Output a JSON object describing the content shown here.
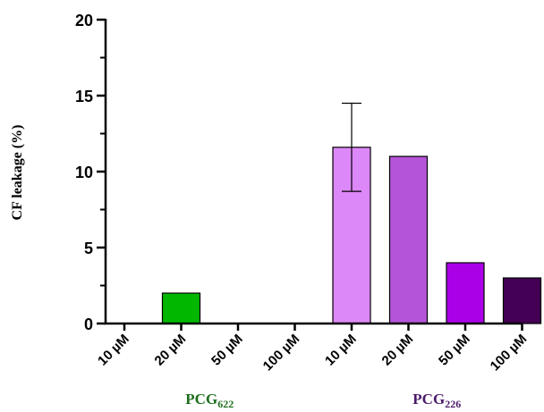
{
  "chart_data": {
    "type": "bar",
    "ylabel": "CF leakage (%)",
    "ylim": [
      0,
      20
    ],
    "yticks": [
      0,
      5,
      10,
      15,
      20
    ],
    "grid": false,
    "categories": [
      "10 µM",
      "20 µM",
      "50 µM",
      "100 µM",
      "10 µM",
      "20 µM",
      "50 µM",
      "100 µM"
    ],
    "values": [
      0,
      2,
      0,
      0,
      11.6,
      11,
      4,
      3
    ],
    "error": [
      null,
      null,
      null,
      null,
      2.9,
      null,
      null,
      null
    ],
    "colors": [
      "#00b800",
      "#00b800",
      "#00b800",
      "#00b800",
      "#dd88f8",
      "#b455d8",
      "#aa00e8",
      "#440055"
    ],
    "groups": [
      {
        "label_main": "PCG",
        "label_sub": "622",
        "from": 0,
        "to": 3,
        "color": "#1e6e1e"
      },
      {
        "label_main": "PCG",
        "label_sub": "226",
        "from": 4,
        "to": 7,
        "color": "#4a1a6a"
      }
    ]
  }
}
